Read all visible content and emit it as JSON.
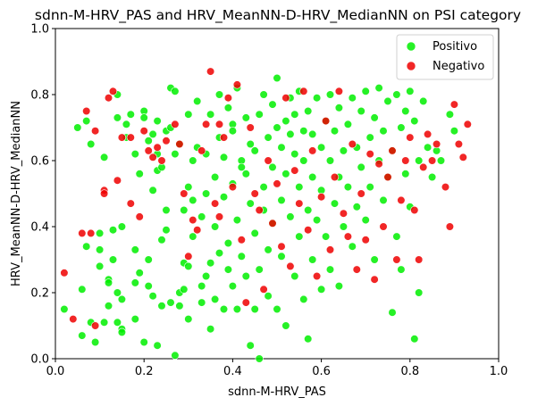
{
  "chart_data": {
    "type": "scatter",
    "title": "sdnn-M-HRV_PAS and HRV_MeanNN-D-HRV_MedianNN on PSI category",
    "xlabel": "sdnn-M-HRV_PAS",
    "ylabel": "HRV_MeanNN-D-HRV_MedianNN",
    "xlim": [
      0,
      1
    ],
    "ylim": [
      0,
      1
    ],
    "xticks": [
      "0.0",
      "0.2",
      "0.4",
      "0.6",
      "0.8",
      "1.0"
    ],
    "yticks": [
      "0.0",
      "0.2",
      "0.4",
      "0.6",
      "0.8",
      "1.0"
    ],
    "grid": false,
    "legend_position": "top-right",
    "series": [
      {
        "name": "Positivo",
        "color": "#00ee00",
        "points": [
          [
            0.02,
            0.15
          ],
          [
            0.05,
            0.7
          ],
          [
            0.06,
            0.21
          ],
          [
            0.06,
            0.07
          ],
          [
            0.07,
            0.72
          ],
          [
            0.07,
            0.34
          ],
          [
            0.08,
            0.11
          ],
          [
            0.08,
            0.65
          ],
          [
            0.09,
            0.05
          ],
          [
            0.1,
            0.38
          ],
          [
            0.1,
            0.28
          ],
          [
            0.1,
            0.33
          ],
          [
            0.11,
            0.11
          ],
          [
            0.11,
            0.61
          ],
          [
            0.12,
            0.24
          ],
          [
            0.12,
            0.23
          ],
          [
            0.12,
            0.16
          ],
          [
            0.13,
            0.3
          ],
          [
            0.13,
            0.39
          ],
          [
            0.14,
            0.2
          ],
          [
            0.14,
            0.73
          ],
          [
            0.14,
            0.8
          ],
          [
            0.14,
            0.11
          ],
          [
            0.15,
            0.09
          ],
          [
            0.15,
            0.08
          ],
          [
            0.15,
            0.18
          ],
          [
            0.15,
            0.4
          ],
          [
            0.16,
            0.71
          ],
          [
            0.16,
            0.67
          ],
          [
            0.17,
            0.74
          ],
          [
            0.18,
            0.23
          ],
          [
            0.18,
            0.12
          ],
          [
            0.18,
            0.33
          ],
          [
            0.18,
            0.62
          ],
          [
            0.19,
            0.56
          ],
          [
            0.19,
            0.26
          ],
          [
            0.2,
            0.05
          ],
          [
            0.2,
            0.75
          ],
          [
            0.2,
            0.73
          ],
          [
            0.21,
            0.3
          ],
          [
            0.21,
            0.66
          ],
          [
            0.21,
            0.22
          ],
          [
            0.22,
            0.68
          ],
          [
            0.22,
            0.51
          ],
          [
            0.22,
            0.19
          ],
          [
            0.23,
            0.04
          ],
          [
            0.23,
            0.62
          ],
          [
            0.23,
            0.72
          ],
          [
            0.23,
            0.57
          ],
          [
            0.24,
            0.16
          ],
          [
            0.24,
            0.36
          ],
          [
            0.24,
            0.58
          ],
          [
            0.25,
            0.45
          ],
          [
            0.25,
            0.69
          ],
          [
            0.25,
            0.39
          ],
          [
            0.26,
            0.17
          ],
          [
            0.26,
            0.7
          ],
          [
            0.26,
            0.82
          ],
          [
            0.27,
            0.81
          ],
          [
            0.27,
            0.01
          ],
          [
            0.27,
            0.62
          ],
          [
            0.28,
            0.2
          ],
          [
            0.28,
            0.65
          ],
          [
            0.28,
            0.16
          ],
          [
            0.29,
            0.45
          ],
          [
            0.29,
            0.29
          ],
          [
            0.29,
            0.21
          ],
          [
            0.3,
            0.52
          ],
          [
            0.3,
            0.74
          ],
          [
            0.3,
            0.28
          ],
          [
            0.3,
            0.12
          ],
          [
            0.31,
            0.37
          ],
          [
            0.31,
            0.6
          ],
          [
            0.31,
            0.48
          ],
          [
            0.32,
            0.78
          ],
          [
            0.32,
            0.64
          ],
          [
            0.33,
            0.17
          ],
          [
            0.33,
            0.22
          ],
          [
            0.33,
            0.43
          ],
          [
            0.34,
            0.25
          ],
          [
            0.34,
            0.5
          ],
          [
            0.34,
            0.62
          ],
          [
            0.35,
            0.29
          ],
          [
            0.35,
            0.74
          ],
          [
            0.35,
            0.09
          ],
          [
            0.36,
            0.18
          ],
          [
            0.36,
            0.55
          ],
          [
            0.36,
            0.4
          ],
          [
            0.37,
            0.32
          ],
          [
            0.37,
            0.67
          ],
          [
            0.37,
            0.8
          ],
          [
            0.38,
            0.49
          ],
          [
            0.38,
            0.15
          ],
          [
            0.38,
            0.61
          ],
          [
            0.39,
            0.27
          ],
          [
            0.39,
            0.76
          ],
          [
            0.39,
            0.35
          ],
          [
            0.4,
            0.71
          ],
          [
            0.4,
            0.22
          ],
          [
            0.4,
            0.53
          ],
          [
            0.4,
            0.69
          ],
          [
            0.41,
            0.15
          ],
          [
            0.41,
            0.42
          ],
          [
            0.41,
            0.82
          ],
          [
            0.42,
            0.6
          ],
          [
            0.42,
            0.58
          ],
          [
            0.42,
            0.31
          ],
          [
            0.43,
            0.25
          ],
          [
            0.43,
            0.73
          ],
          [
            0.43,
            0.56
          ],
          [
            0.44,
            0.04
          ],
          [
            0.44,
            0.47
          ],
          [
            0.44,
            0.65
          ],
          [
            0.45,
            0.15
          ],
          [
            0.45,
            0.38
          ],
          [
            0.45,
            0.63
          ],
          [
            0.46,
            0.0
          ],
          [
            0.46,
            0.27
          ],
          [
            0.46,
            0.74
          ],
          [
            0.47,
            0.8
          ],
          [
            0.47,
            0.45
          ],
          [
            0.47,
            0.52
          ],
          [
            0.48,
            0.67
          ],
          [
            0.48,
            0.33
          ],
          [
            0.48,
            0.19
          ],
          [
            0.49,
            0.77
          ],
          [
            0.49,
            0.58
          ],
          [
            0.49,
            0.41
          ],
          [
            0.5,
            0.7
          ],
          [
            0.5,
            0.15
          ],
          [
            0.5,
            0.85
          ],
          [
            0.51,
            0.64
          ],
          [
            0.51,
            0.48
          ],
          [
            0.51,
            0.31
          ],
          [
            0.52,
            0.72
          ],
          [
            0.52,
            0.56
          ],
          [
            0.52,
            0.1
          ],
          [
            0.53,
            0.68
          ],
          [
            0.53,
            0.79
          ],
          [
            0.53,
            0.43
          ],
          [
            0.54,
            0.25
          ],
          [
            0.54,
            0.62
          ],
          [
            0.54,
            0.74
          ],
          [
            0.55,
            0.37
          ],
          [
            0.55,
            0.52
          ],
          [
            0.55,
            0.81
          ],
          [
            0.56,
            0.69
          ],
          [
            0.56,
            0.18
          ],
          [
            0.56,
            0.6
          ],
          [
            0.57,
            0.06
          ],
          [
            0.57,
            0.45
          ],
          [
            0.57,
            0.75
          ],
          [
            0.58,
            0.3
          ],
          [
            0.58,
            0.55
          ],
          [
            0.58,
            0.68
          ],
          [
            0.59,
            0.42
          ],
          [
            0.59,
            0.79
          ],
          [
            0.6,
            0.21
          ],
          [
            0.6,
            0.64
          ],
          [
            0.6,
            0.51
          ],
          [
            0.61,
            0.72
          ],
          [
            0.61,
            0.37
          ],
          [
            0.62,
            0.6
          ],
          [
            0.62,
            0.8
          ],
          [
            0.62,
            0.27
          ],
          [
            0.63,
            0.47
          ],
          [
            0.63,
            0.69
          ],
          [
            0.64,
            0.55
          ],
          [
            0.64,
            0.22
          ],
          [
            0.64,
            0.76
          ],
          [
            0.65,
            0.63
          ],
          [
            0.65,
            0.4
          ],
          [
            0.66,
            0.71
          ],
          [
            0.66,
            0.52
          ],
          [
            0.67,
            0.79
          ],
          [
            0.67,
            0.34
          ],
          [
            0.68,
            0.64
          ],
          [
            0.68,
            0.46
          ],
          [
            0.69,
            0.58
          ],
          [
            0.69,
            0.75
          ],
          [
            0.7,
            0.81
          ],
          [
            0.7,
            0.42
          ],
          [
            0.71,
            0.67
          ],
          [
            0.71,
            0.52
          ],
          [
            0.72,
            0.73
          ],
          [
            0.72,
            0.3
          ],
          [
            0.73,
            0.82
          ],
          [
            0.73,
            0.6
          ],
          [
            0.74,
            0.48
          ],
          [
            0.74,
            0.69
          ],
          [
            0.75,
            0.78
          ],
          [
            0.75,
            0.55
          ],
          [
            0.76,
            0.14
          ],
          [
            0.76,
            0.63
          ],
          [
            0.77,
            0.8
          ],
          [
            0.77,
            0.37
          ],
          [
            0.78,
            0.7
          ],
          [
            0.78,
            0.27
          ],
          [
            0.79,
            0.56
          ],
          [
            0.79,
            0.75
          ],
          [
            0.8,
            0.81
          ],
          [
            0.8,
            0.46
          ],
          [
            0.81,
            0.06
          ],
          [
            0.81,
            0.72
          ],
          [
            0.82,
            0.2
          ],
          [
            0.82,
            0.6
          ],
          [
            0.83,
            0.78
          ],
          [
            0.84,
            0.64
          ],
          [
            0.85,
            0.55
          ],
          [
            0.86,
            0.63
          ],
          [
            0.87,
            0.6
          ],
          [
            0.89,
            0.74
          ],
          [
            0.9,
            0.69
          ]
        ]
      },
      {
        "name": "Negativo",
        "color": "#ee0000",
        "points": [
          [
            0.02,
            0.26
          ],
          [
            0.04,
            0.12
          ],
          [
            0.06,
            0.38
          ],
          [
            0.07,
            0.75
          ],
          [
            0.08,
            0.38
          ],
          [
            0.09,
            0.1
          ],
          [
            0.09,
            0.69
          ],
          [
            0.11,
            0.51
          ],
          [
            0.11,
            0.5
          ],
          [
            0.12,
            0.79
          ],
          [
            0.13,
            0.81
          ],
          [
            0.14,
            0.54
          ],
          [
            0.15,
            0.67
          ],
          [
            0.17,
            0.67
          ],
          [
            0.17,
            0.47
          ],
          [
            0.19,
            0.43
          ],
          [
            0.2,
            0.69
          ],
          [
            0.21,
            0.63
          ],
          [
            0.22,
            0.61
          ],
          [
            0.23,
            0.64
          ],
          [
            0.24,
            0.6
          ],
          [
            0.25,
            0.66
          ],
          [
            0.27,
            0.71
          ],
          [
            0.28,
            0.65
          ],
          [
            0.29,
            0.5
          ],
          [
            0.3,
            0.31
          ],
          [
            0.31,
            0.42
          ],
          [
            0.32,
            0.39
          ],
          [
            0.33,
            0.63
          ],
          [
            0.34,
            0.71
          ],
          [
            0.35,
            0.87
          ],
          [
            0.36,
            0.47
          ],
          [
            0.37,
            0.71
          ],
          [
            0.37,
            0.43
          ],
          [
            0.38,
            0.67
          ],
          [
            0.39,
            0.79
          ],
          [
            0.4,
            0.52
          ],
          [
            0.41,
            0.83
          ],
          [
            0.42,
            0.36
          ],
          [
            0.43,
            0.17
          ],
          [
            0.44,
            0.7
          ],
          [
            0.45,
            0.5
          ],
          [
            0.46,
            0.45
          ],
          [
            0.47,
            0.21
          ],
          [
            0.48,
            0.6
          ],
          [
            0.49,
            0.41
          ],
          [
            0.5,
            0.53
          ],
          [
            0.51,
            0.34
          ],
          [
            0.52,
            0.79
          ],
          [
            0.53,
            0.28
          ],
          [
            0.54,
            0.57
          ],
          [
            0.55,
            0.47
          ],
          [
            0.56,
            0.81
          ],
          [
            0.57,
            0.39
          ],
          [
            0.58,
            0.63
          ],
          [
            0.59,
            0.25
          ],
          [
            0.6,
            0.49
          ],
          [
            0.61,
            0.72
          ],
          [
            0.62,
            0.33
          ],
          [
            0.63,
            0.55
          ],
          [
            0.64,
            0.81
          ],
          [
            0.65,
            0.44
          ],
          [
            0.66,
            0.37
          ],
          [
            0.67,
            0.65
          ],
          [
            0.68,
            0.27
          ],
          [
            0.69,
            0.5
          ],
          [
            0.7,
            0.36
          ],
          [
            0.71,
            0.62
          ],
          [
            0.72,
            0.24
          ],
          [
            0.73,
            0.59
          ],
          [
            0.74,
            0.4
          ],
          [
            0.75,
            0.55
          ],
          [
            0.76,
            0.63
          ],
          [
            0.77,
            0.3
          ],
          [
            0.78,
            0.48
          ],
          [
            0.79,
            0.6
          ],
          [
            0.8,
            0.67
          ],
          [
            0.81,
            0.45
          ],
          [
            0.82,
            0.3
          ],
          [
            0.83,
            0.58
          ],
          [
            0.84,
            0.68
          ],
          [
            0.85,
            0.6
          ],
          [
            0.86,
            0.65
          ],
          [
            0.88,
            0.52
          ],
          [
            0.89,
            0.4
          ],
          [
            0.9,
            0.77
          ],
          [
            0.91,
            0.65
          ],
          [
            0.92,
            0.61
          ],
          [
            0.93,
            0.71
          ]
        ]
      }
    ]
  }
}
